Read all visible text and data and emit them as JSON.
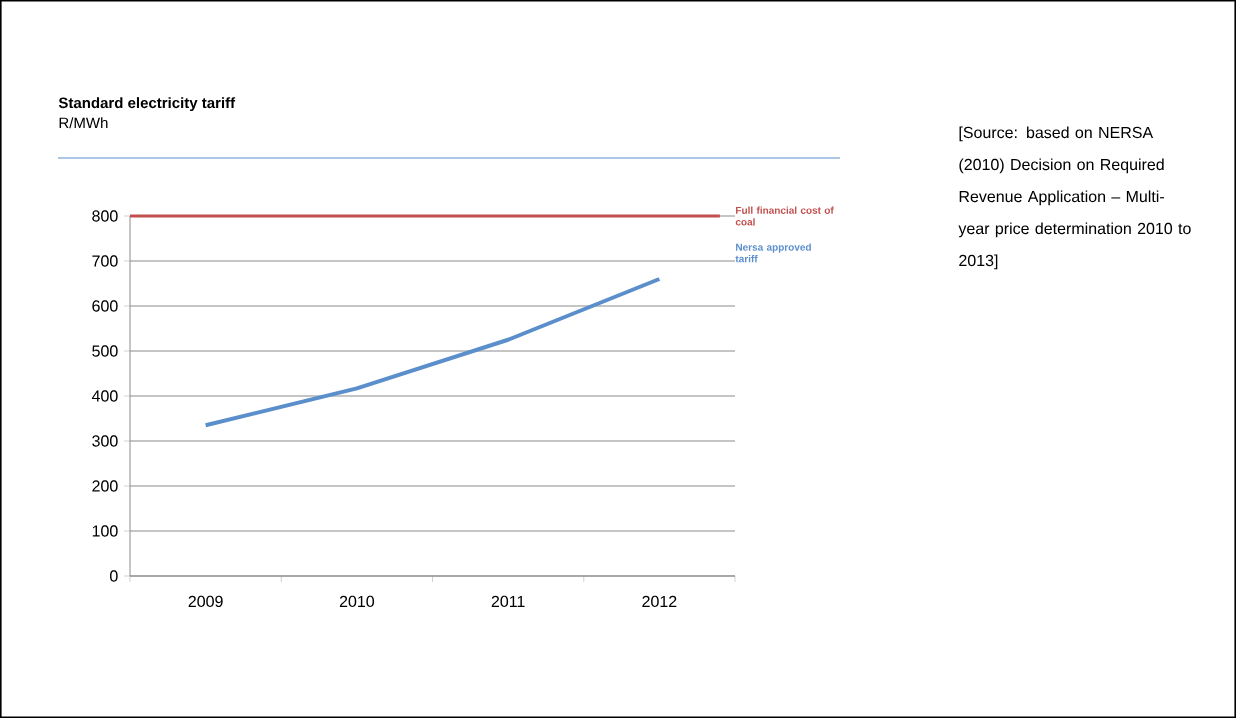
{
  "chart_data": {
    "type": "line",
    "title": "Standard electricity tariff",
    "subtitle": "R/MWh",
    "categories": [
      "2009",
      "2010",
      "2011",
      "2012"
    ],
    "series": [
      {
        "name": "Nersa approved tariff",
        "color": "#5b8fcc",
        "values": [
          335,
          417,
          525,
          660
        ]
      }
    ],
    "ylim": [
      0,
      800
    ],
    "yticks": [
      0,
      100,
      200,
      300,
      400,
      500,
      600,
      700,
      800
    ],
    "grid": "y",
    "marker": "none",
    "ref_lines": [
      {
        "axis": "y",
        "value": 800,
        "label": "Full financial cost of coal",
        "color": "#c0504d"
      }
    ],
    "annotations": [
      "[Source: based on NERSA (2010) Decision on Required Revenue Application – Multi-year price determination 2010 to 2013]"
    ]
  }
}
